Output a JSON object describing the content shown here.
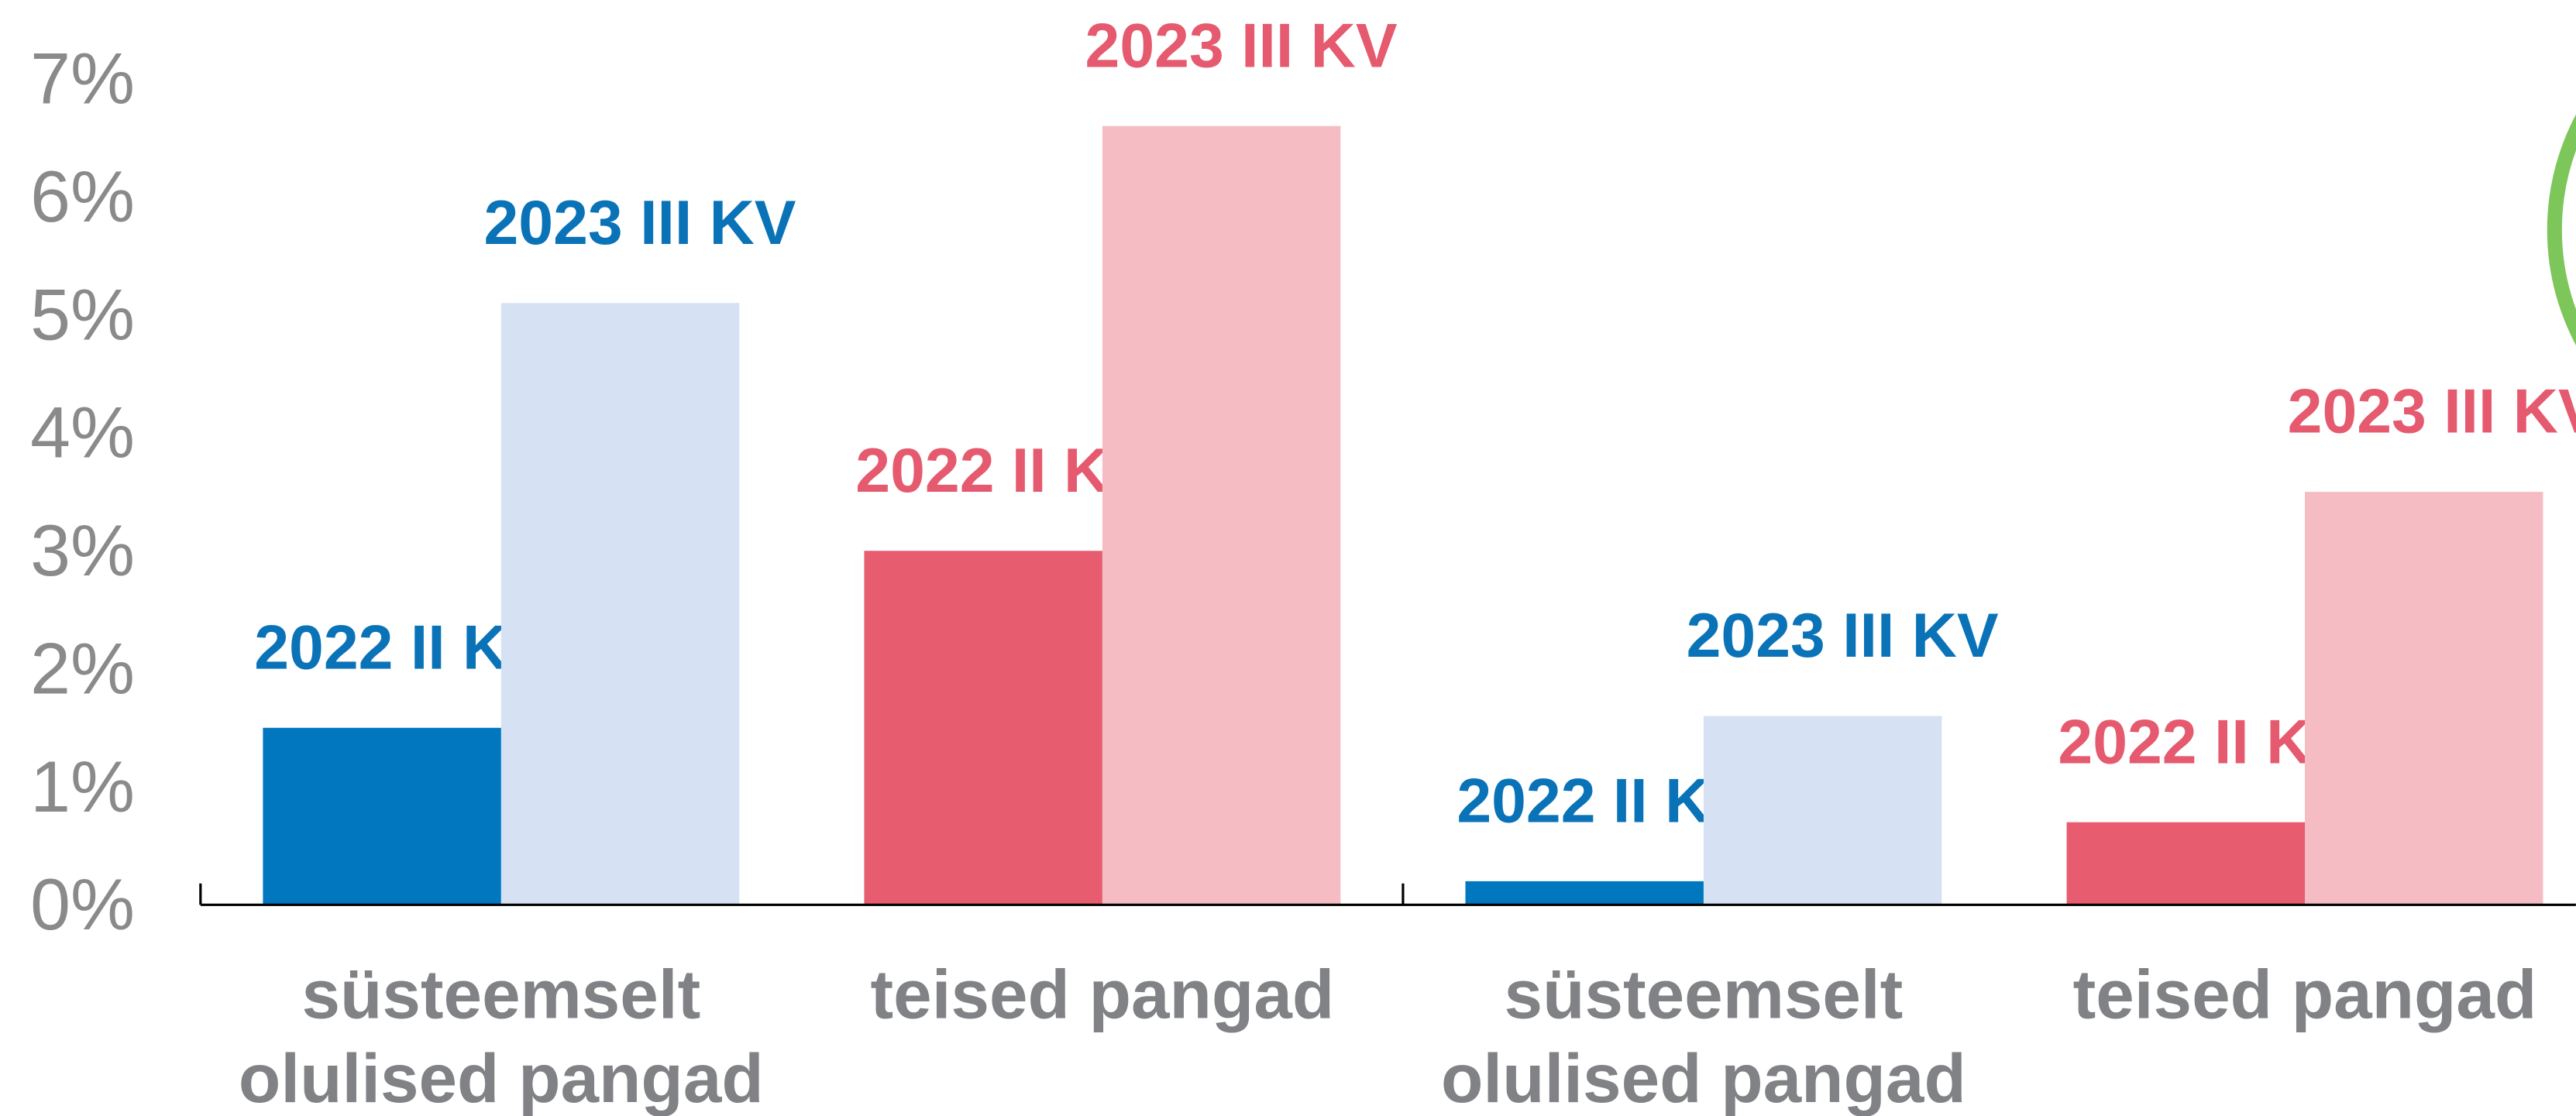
{
  "chart_data": {
    "type": "bar",
    "categories": [
      "süsteemselt olulised pangad",
      "teised pangad",
      "süsteemselt olulised pangad",
      "teised pangad"
    ],
    "series": [
      {
        "name": "2022 II KV",
        "values": [
          1.5,
          3.0,
          0.2,
          0.7
        ],
        "colors": [
          "#0077be",
          "#e85c70",
          "#0077be",
          "#e85c70"
        ],
        "label_colors": [
          "#0a73b8",
          "#e55a6e",
          "#0a73b8",
          "#e55a6e"
        ]
      },
      {
        "name": "2023 III KV",
        "values": [
          5.1,
          6.6,
          1.6,
          3.5
        ],
        "colors": [
          "#d6e2f3",
          "#f6bcc4",
          "#d6e2f3",
          "#f6bcc4"
        ],
        "label_colors": [
          "#0a73b8",
          "#e55a6e",
          "#0a73b8",
          "#e55a6e"
        ]
      }
    ],
    "ylim": [
      0,
      7
    ],
    "yticks": [
      {
        "value": 0,
        "label": "0%"
      },
      {
        "value": 1,
        "label": "1%"
      },
      {
        "value": 2,
        "label": "2%"
      },
      {
        "value": 3,
        "label": "3%"
      },
      {
        "value": 4,
        "label": "4%"
      },
      {
        "value": 5,
        "label": "5%"
      },
      {
        "value": 6,
        "label": "6%"
      },
      {
        "value": 7,
        "label": "7%"
      }
    ],
    "grid": false
  }
}
